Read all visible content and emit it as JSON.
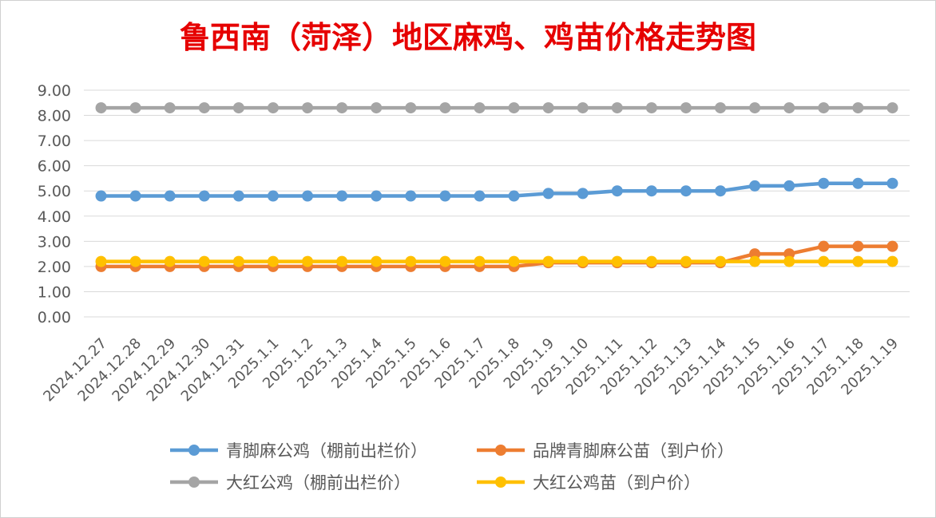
{
  "title": "鲁西南（菏泽）地区麻鸡、鸡苗价格走势图",
  "chart_data": {
    "type": "line",
    "title": "鲁西南（菏泽）地区麻鸡、鸡苗价格走势图",
    "categories": [
      "2024.12.27",
      "2024.12.28",
      "2024.12.29",
      "2024.12.30",
      "2024.12.31",
      "2025.1.1",
      "2025.1.2",
      "2025.1.3",
      "2025.1.4",
      "2025.1.5",
      "2025.1.6",
      "2025.1.7",
      "2025.1.8",
      "2025.1.9",
      "2025.1.10",
      "2025.1.11",
      "2025.1.12",
      "2025.1.13",
      "2025.1.14",
      "2025.1.15",
      "2025.1.16",
      "2025.1.17",
      "2025.1.18",
      "2025.1.19"
    ],
    "y_ticks": [
      "0.00",
      "1.00",
      "2.00",
      "3.00",
      "4.00",
      "5.00",
      "6.00",
      "7.00",
      "8.00",
      "9.00"
    ],
    "ylim": [
      0,
      9
    ],
    "grid": true,
    "legend_position": "bottom",
    "series": [
      {
        "name": "青脚麻公鸡（棚前出栏价）",
        "color": "#5b9bd5",
        "values": [
          4.8,
          4.8,
          4.8,
          4.8,
          4.8,
          4.8,
          4.8,
          4.8,
          4.8,
          4.8,
          4.8,
          4.8,
          4.8,
          4.9,
          4.9,
          5.0,
          5.0,
          5.0,
          5.0,
          5.2,
          5.2,
          5.3,
          5.3,
          5.3
        ]
      },
      {
        "name": "品牌青脚麻公苗（到户价）",
        "color": "#ed7d31",
        "values": [
          2.0,
          2.0,
          2.0,
          2.0,
          2.0,
          2.0,
          2.0,
          2.0,
          2.0,
          2.0,
          2.0,
          2.0,
          2.0,
          2.15,
          2.15,
          2.15,
          2.15,
          2.15,
          2.15,
          2.5,
          2.5,
          2.8,
          2.8,
          2.8
        ]
      },
      {
        "name": "大红公鸡（棚前出栏价）",
        "color": "#a5a5a5",
        "values": [
          8.3,
          8.3,
          8.3,
          8.3,
          8.3,
          8.3,
          8.3,
          8.3,
          8.3,
          8.3,
          8.3,
          8.3,
          8.3,
          8.3,
          8.3,
          8.3,
          8.3,
          8.3,
          8.3,
          8.3,
          8.3,
          8.3,
          8.3,
          8.3
        ]
      },
      {
        "name": "大红公鸡苗（到户价）",
        "color": "#ffc000",
        "values": [
          2.2,
          2.2,
          2.2,
          2.2,
          2.2,
          2.2,
          2.2,
          2.2,
          2.2,
          2.2,
          2.2,
          2.2,
          2.2,
          2.2,
          2.2,
          2.2,
          2.2,
          2.2,
          2.2,
          2.2,
          2.2,
          2.2,
          2.2,
          2.2
        ]
      }
    ]
  }
}
